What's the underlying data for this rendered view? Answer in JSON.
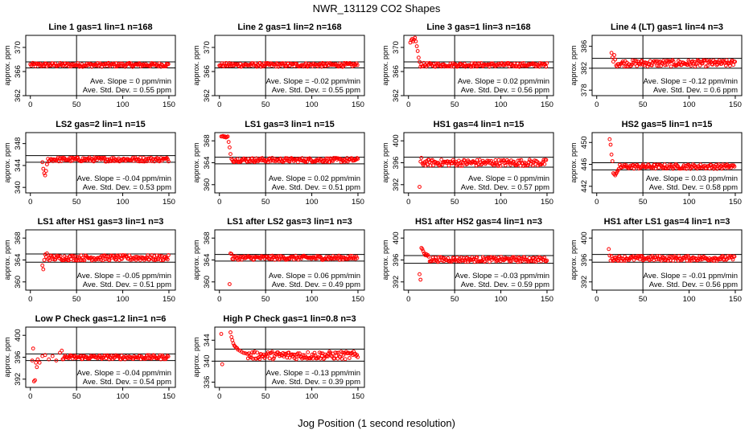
{
  "title": "NWR_131129  CO2 Shapes",
  "xlabel": "Jog Position (1 second resolution)",
  "ylabel": "approx. ppm",
  "colors": {
    "points": "#ff0000",
    "axes": "#000000"
  },
  "chart_data": [
    {
      "type": "scatter",
      "title": "Line 1 gas=1 lin=1 n=168",
      "ylim": [
        362,
        372
      ],
      "yticks": [
        "362",
        "366",
        "370"
      ],
      "xticks": [
        "0",
        "50",
        "100",
        "150"
      ],
      "hlines": [
        367.6,
        366.6
      ],
      "level": 367.1,
      "spikes": [],
      "slope": "Ave. Slope = 0  ppm/min",
      "stdev": "Ave. Std. Dev. = 0.55  ppm"
    },
    {
      "type": "scatter",
      "title": "Line 2 gas=1 lin=2 n=168",
      "ylim": [
        362,
        372
      ],
      "yticks": [
        "362",
        "366",
        "370"
      ],
      "xticks": [
        "0",
        "50",
        "100",
        "150"
      ],
      "hlines": [
        367.6,
        366.6
      ],
      "level": 367.1,
      "spikes": [],
      "slope": "Ave. Slope = -0.02  ppm/min",
      "stdev": "Ave. Std. Dev. = 0.55  ppm"
    },
    {
      "type": "scatter",
      "title": "Line 3 gas=1 lin=3 n=168",
      "ylim": [
        362,
        372
      ],
      "yticks": [
        "362",
        "366",
        "370"
      ],
      "xticks": [
        "0",
        "50",
        "100",
        "150"
      ],
      "hlines": [
        367.6,
        366.6
      ],
      "level": 367.1,
      "spikes": [
        [
          2,
          370.8
        ],
        [
          3,
          371.2
        ],
        [
          4,
          371.4
        ],
        [
          5,
          371.0
        ],
        [
          6,
          371.3
        ],
        [
          7,
          371.6
        ],
        [
          8,
          371.0
        ],
        [
          9,
          370.2
        ],
        [
          10,
          369.4
        ],
        [
          11,
          368.3
        ],
        [
          12,
          367.6
        ]
      ],
      "slope": "Ave. Slope = 0.02  ppm/min",
      "stdev": "Ave. Std. Dev. = 0.56  ppm"
    },
    {
      "type": "scatter",
      "title": "Line 4 (LT) gas=1 lin=4 n=3",
      "ylim": [
        377,
        388
      ],
      "yticks": [
        "378",
        "382",
        "386"
      ],
      "xticks": [
        "0",
        "50",
        "100",
        "150"
      ],
      "hlines": [
        383.8,
        382.0
      ],
      "level": 382.9,
      "spikes": [
        [
          16,
          384.8
        ],
        [
          17,
          384.0
        ],
        [
          18,
          383.2
        ],
        [
          19,
          384.4
        ],
        [
          20,
          383.6
        ]
      ],
      "slope": "Ave. Slope = -0.12  ppm/min",
      "stdev": "Ave. Std. Dev. = 0.6  ppm"
    },
    {
      "type": "scatter",
      "title": "LS2 gas=2 lin=1 n=15",
      "ylim": [
        339,
        350
      ],
      "yticks": [
        "340",
        "344",
        "348"
      ],
      "xticks": [
        "0",
        "50",
        "100",
        "150"
      ],
      "hlines": [
        345.8,
        344.6
      ],
      "level": 345.1,
      "spikes": [
        [
          13,
          344.6
        ],
        [
          14,
          343.4
        ],
        [
          15,
          342.6
        ],
        [
          16,
          342.2
        ],
        [
          17,
          343.0
        ],
        [
          18,
          344.2
        ],
        [
          19,
          345.2
        ]
      ],
      "slope": "Ave. Slope = -0.04  ppm/min",
      "stdev": "Ave. Std. Dev. = 0.53  ppm"
    },
    {
      "type": "scatter",
      "title": "LS1 gas=3 lin=1 n=15",
      "ylim": [
        358.5,
        369.5
      ],
      "yticks": [
        "360",
        "364",
        "368"
      ],
      "xticks": [
        "0",
        "50",
        "100",
        "150"
      ],
      "hlines": [
        365.0,
        363.8
      ],
      "level": 364.5,
      "spikes": [
        [
          2,
          368.8
        ],
        [
          3,
          368.8
        ],
        [
          4,
          368.9
        ],
        [
          5,
          368.7
        ],
        [
          6,
          368.8
        ],
        [
          7,
          368.6
        ],
        [
          8,
          368.7
        ],
        [
          9,
          368.8
        ],
        [
          10,
          367.8
        ],
        [
          11,
          366.8
        ],
        [
          12,
          365.6
        ],
        [
          13,
          364.7
        ]
      ],
      "slope": "Ave. Slope = 0.02  ppm/min",
      "stdev": "Ave. Std. Dev. = 0.51  ppm"
    },
    {
      "type": "scatter",
      "title": "HS1 gas=4 lin=1 n=15",
      "ylim": [
        390.5,
        401.5
      ],
      "yticks": [
        "392",
        "396",
        "400"
      ],
      "xticks": [
        "0",
        "50",
        "100",
        "150"
      ],
      "hlines": [
        397.0,
        395.2
      ],
      "level": 396.0,
      "spikes": [
        [
          12,
          391.6
        ],
        [
          13,
          396.2
        ],
        [
          14,
          396.9
        ]
      ],
      "slope": "Ave. Slope = 0  ppm/min",
      "stdev": "Ave. Std. Dev. = 0.57  ppm"
    },
    {
      "type": "scatter",
      "title": "HS2 gas=5 lin=1 n=15",
      "ylim": [
        440.8,
        451.8
      ],
      "yticks": [
        "442",
        "446",
        "450"
      ],
      "xticks": [
        "0",
        "50",
        "100",
        "150"
      ],
      "hlines": [
        446.3,
        445.0
      ],
      "level": 445.6,
      "spikes": [
        [
          14,
          450.6
        ],
        [
          15,
          449.6
        ],
        [
          16,
          447.8
        ],
        [
          17,
          446.6
        ],
        [
          18,
          444.4
        ],
        [
          19,
          444.2
        ],
        [
          20,
          444.0
        ],
        [
          21,
          444.3
        ],
        [
          22,
          444.6
        ],
        [
          23,
          444.9
        ],
        [
          24,
          445.2
        ]
      ],
      "slope": "Ave. Slope = 0.03  ppm/min",
      "stdev": "Ave. Std. Dev. = 0.58  ppm"
    },
    {
      "type": "scatter",
      "title": "LS1 after HS1 gas=3 lin=1 n=3",
      "ylim": [
        358.5,
        369.5
      ],
      "yticks": [
        "360",
        "364",
        "368"
      ],
      "xticks": [
        "0",
        "50",
        "100",
        "150"
      ],
      "hlines": [
        365.1,
        363.6
      ],
      "level": 364.4,
      "spikes": [
        [
          13,
          363.0
        ],
        [
          14,
          362.3
        ],
        [
          15,
          364.0
        ],
        [
          16,
          365.0
        ],
        [
          17,
          364.6
        ],
        [
          18,
          365.2
        ]
      ],
      "slope": "Ave. Slope = -0.05  ppm/min",
      "stdev": "Ave. Std. Dev. = 0.51  ppm"
    },
    {
      "type": "scatter",
      "title": "LS1 after LS2 gas=3 lin=1 n=3",
      "ylim": [
        358.5,
        369.5
      ],
      "yticks": [
        "360",
        "364",
        "368"
      ],
      "xticks": [
        "0",
        "50",
        "100",
        "150"
      ],
      "hlines": [
        365.0,
        363.8
      ],
      "level": 364.4,
      "spikes": [
        [
          11,
          359.6
        ],
        [
          12,
          365.2
        ],
        [
          13,
          365.1
        ],
        [
          14,
          364.2
        ]
      ],
      "slope": "Ave. Slope = 0.06  ppm/min",
      "stdev": "Ave. Std. Dev. = 0.49  ppm"
    },
    {
      "type": "scatter",
      "title": "HS1 after HS2 gas=4 lin=1 n=3",
      "ylim": [
        390.5,
        401.5
      ],
      "yticks": [
        "392",
        "396",
        "400"
      ],
      "xticks": [
        "0",
        "50",
        "100",
        "150"
      ],
      "hlines": [
        396.8,
        395.4
      ],
      "level": 396.1,
      "spikes": [
        [
          12,
          393.4
        ],
        [
          13,
          392.4
        ],
        [
          14,
          398.2
        ],
        [
          15,
          398.0
        ],
        [
          16,
          397.6
        ],
        [
          17,
          397.2
        ],
        [
          18,
          396.9
        ],
        [
          19,
          397.1
        ],
        [
          20,
          396.8
        ],
        [
          21,
          396.9
        ],
        [
          22,
          396.6
        ]
      ],
      "slope": "Ave. Slope = -0.03  ppm/min",
      "stdev": "Ave. Std. Dev. = 0.59  ppm"
    },
    {
      "type": "scatter",
      "title": "HS1 after LS1 gas=4 lin=1 n=3",
      "ylim": [
        390.5,
        401.5
      ],
      "yticks": [
        "392",
        "396",
        "400"
      ],
      "xticks": [
        "0",
        "50",
        "100",
        "150"
      ],
      "hlines": [
        397.0,
        395.6
      ],
      "level": 396.3,
      "spikes": [
        [
          13,
          398.0
        ],
        [
          14,
          396.8
        ],
        [
          15,
          395.9
        ]
      ],
      "slope": "Ave. Slope = -0.01  ppm/min",
      "stdev": "Ave. Std. Dev. = 0.56  ppm"
    },
    {
      "type": "scatter",
      "title": "Low P Check gas=1.2 lin=1 n=6",
      "ylim": [
        390.5,
        401.5
      ],
      "yticks": [
        "392",
        "396",
        "400"
      ],
      "xticks": [
        "0",
        "50",
        "100",
        "150"
      ],
      "hlines": [
        396.6,
        395.4
      ],
      "level": 396.0,
      "spikes": [
        [
          2,
          395.4
        ],
        [
          3,
          397.6
        ],
        [
          4,
          391.6
        ],
        [
          5,
          391.8
        ],
        [
          6,
          395.0
        ],
        [
          7,
          394.2
        ],
        [
          8,
          395.6
        ],
        [
          10,
          395.0
        ],
        [
          13,
          396.2
        ],
        [
          16,
          396.4
        ],
        [
          20,
          395.6
        ],
        [
          24,
          396.2
        ],
        [
          28,
          395.4
        ],
        [
          32,
          396.8
        ],
        [
          34,
          397.2
        ]
      ],
      "slope": "Ave. Slope = -0.04  ppm/min",
      "stdev": "Ave. Std. Dev. = 0.54  ppm"
    },
    {
      "type": "scatter",
      "title": "High P Check gas=1 lin=0.8 n=3",
      "ylim": [
        335,
        346.5
      ],
      "yticks": [
        "336",
        "340",
        "344"
      ],
      "xticks": [
        "0",
        "50",
        "100",
        "150"
      ],
      "hlines": [
        342.3,
        340.0
      ],
      "level": 341.1,
      "spikes": [
        [
          2,
          345.2
        ],
        [
          3,
          339.4
        ],
        [
          12,
          345.5
        ],
        [
          13,
          344.6
        ],
        [
          14,
          344.0
        ],
        [
          15,
          343.4
        ],
        [
          16,
          343.0
        ],
        [
          17,
          342.8
        ],
        [
          18,
          342.6
        ],
        [
          19,
          342.5
        ],
        [
          20,
          342.2
        ],
        [
          22,
          342.0
        ],
        [
          24,
          341.8
        ],
        [
          26,
          341.6
        ],
        [
          28,
          341.5
        ],
        [
          30,
          341.4
        ]
      ],
      "slope": "Ave. Slope = -0.13  ppm/min",
      "stdev": "Ave. Std. Dev. = 0.39  ppm"
    }
  ]
}
